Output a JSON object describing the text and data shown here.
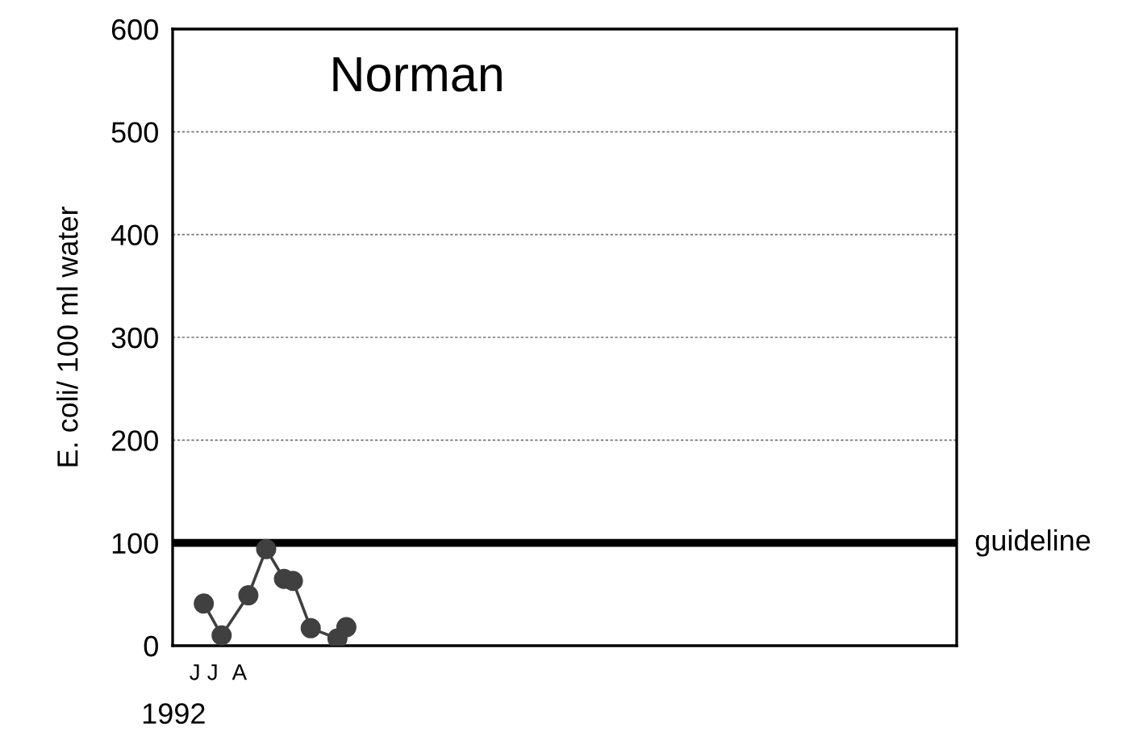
{
  "chart_data": {
    "type": "line",
    "title": "Norman",
    "ylabel": "E. coli/ 100 ml water",
    "xlabel": "1992",
    "categories": [
      null,
      null,
      "J",
      null,
      "J",
      null,
      null,
      "A",
      null,
      null,
      null,
      null,
      null,
      null,
      null,
      null,
      null,
      null,
      null,
      null,
      null,
      null,
      null,
      null,
      null,
      null,
      null,
      null,
      null,
      null,
      null,
      null,
      null,
      null,
      null,
      null,
      null,
      null,
      null,
      null,
      null,
      null,
      null,
      null,
      null,
      null,
      null,
      null,
      null,
      null,
      null,
      null,
      null,
      null,
      null,
      null,
      null,
      null,
      null,
      null,
      null,
      null,
      null,
      null,
      null,
      null,
      null,
      null,
      null,
      null,
      null,
      null,
      null,
      null,
      null,
      null,
      null,
      null,
      null,
      null,
      null,
      null,
      null,
      null,
      null,
      null,
      null,
      null
    ],
    "series": [
      {
        "color": "#404040",
        "values": [
          null,
          null,
          null,
          41,
          null,
          10,
          null,
          null,
          49,
          null,
          94,
          null,
          65,
          63,
          null,
          17,
          null,
          null,
          7,
          18,
          null,
          null,
          null,
          null,
          null,
          null,
          null,
          null,
          null,
          null,
          null,
          null,
          null,
          null,
          null,
          null,
          null,
          null,
          null,
          null,
          null,
          null,
          null,
          null,
          null,
          null,
          null,
          null,
          null,
          null,
          null,
          null,
          null,
          null,
          null,
          null,
          null,
          null,
          null,
          null,
          null,
          null,
          null,
          null,
          null,
          null,
          null,
          null,
          null,
          null,
          null,
          null,
          null,
          null,
          null,
          null,
          null,
          null,
          null,
          null,
          null,
          null,
          null,
          null,
          null,
          null,
          null,
          null
        ]
      }
    ],
    "marker": "circle",
    "line_style": "solid",
    "grid": "y",
    "ylim": [
      0,
      600
    ],
    "yticks": [
      0,
      100,
      200,
      300,
      400,
      500,
      600
    ],
    "ref_lines": [
      {
        "axis": "y",
        "value": 100,
        "label": "guideline",
        "color": "#000000",
        "line_style": "solid"
      }
    ]
  }
}
